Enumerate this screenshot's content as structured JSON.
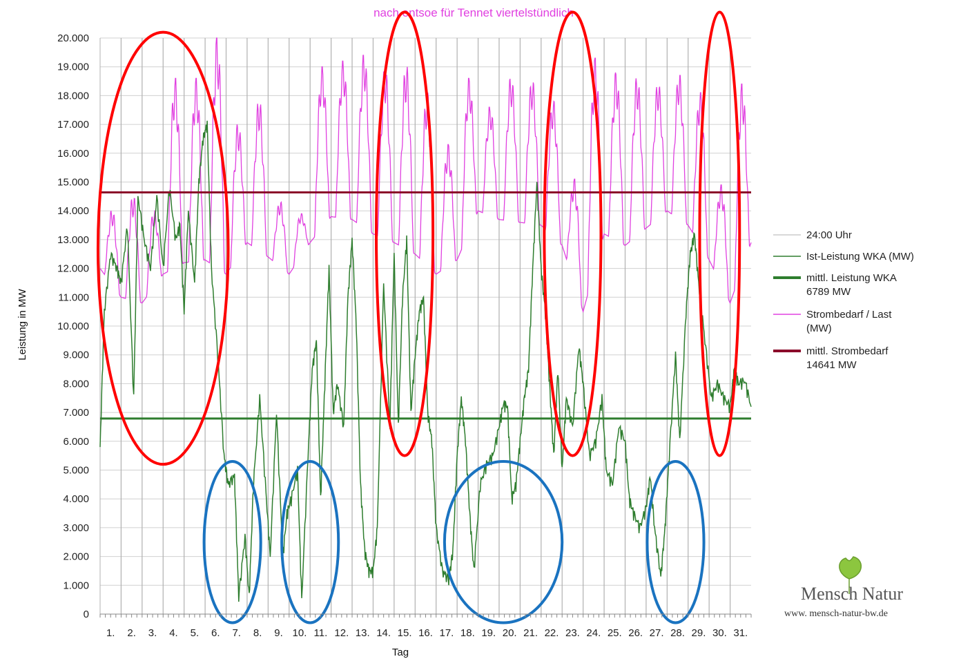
{
  "chart_data": {
    "type": "line",
    "title": "nach entsoe für Tennet viertelstündlich",
    "xlabel": "Tag",
    "ylabel": "Leistung in MW",
    "ylim": [
      0,
      20000
    ],
    "y_ticks": [
      "0",
      "1.000",
      "2.000",
      "3.000",
      "4.000",
      "5.000",
      "6.000",
      "7.000",
      "8.000",
      "9.000",
      "10.000",
      "11.000",
      "12.000",
      "13.000",
      "14.000",
      "15.000",
      "16.000",
      "17.000",
      "18.000",
      "19.000",
      "20.000"
    ],
    "x_ticks": [
      "1.",
      "2.",
      "3.",
      "4.",
      "5.",
      "6.",
      "7.",
      "8.",
      "9.",
      "10.",
      "11.",
      "12.",
      "13.",
      "14.",
      "15.",
      "16.",
      "17.",
      "18.",
      "19.",
      "20.",
      "21.",
      "22.",
      "23.",
      "24.",
      "25.",
      "26.",
      "27.",
      "28.",
      "29.",
      "30.",
      "31."
    ],
    "grid": true,
    "legend_position": "right",
    "series": [
      {
        "name": "24:00 Uhr",
        "color": "#b0b0b0",
        "kind": "day-separators"
      },
      {
        "name": "Ist-Leistung WKA (MW)",
        "color": "#2e7d2e",
        "kind": "line",
        "x": [
          0,
          0.2,
          0.5,
          0.8,
          1,
          1.3,
          1.6,
          1.8,
          2.1,
          2.4,
          2.7,
          3,
          3.3,
          3.6,
          3.8,
          4,
          4.2,
          4.5,
          4.7,
          4.9,
          5.1,
          5.3,
          5.6,
          5.9,
          6.1,
          6.4,
          6.6,
          6.9,
          7.1,
          7.3,
          7.6,
          7.9,
          8.1,
          8.4,
          8.7,
          8.9,
          9.1,
          9.4,
          9.6,
          9.9,
          10.1,
          10.3,
          10.5,
          10.7,
          10.9,
          11.1,
          11.3,
          11.6,
          11.8,
          12,
          12.2,
          12.4,
          12.6,
          12.8,
          13,
          13.2,
          13.5,
          13.8,
          14,
          14.2,
          14.4,
          14.6,
          14.8,
          15,
          15.2,
          15.4,
          15.6,
          15.8,
          16,
          16.3,
          16.6,
          16.8,
          17,
          17.2,
          17.4,
          17.6,
          17.8,
          18.1,
          18.4,
          18.7,
          19,
          19.2,
          19.4,
          19.6,
          19.8,
          20,
          20.2,
          20.4,
          20.6,
          20.8,
          21,
          21.2,
          21.4,
          21.6,
          21.8,
          22,
          22.2,
          22.5,
          22.8,
          23,
          23.3,
          23.6,
          23.9,
          24.1,
          24.4,
          24.7,
          25,
          25.2,
          25.4,
          25.7,
          26,
          26.2,
          26.4,
          26.7,
          26.9,
          27.1,
          27.4,
          27.6,
          27.9,
          28.1,
          28.3,
          28.5,
          28.8,
          29.1,
          29.4,
          29.7,
          30,
          30.2,
          30.4,
          30.7,
          31
        ],
        "values": [
          5800,
          10500,
          12500,
          12000,
          11500,
          13500,
          7500,
          14500,
          13000,
          12000,
          14500,
          12000,
          14800,
          13000,
          13500,
          10500,
          14000,
          11500,
          15000,
          16500,
          17000,
          12000,
          9000,
          5500,
          4500,
          4800,
          600,
          2700,
          600,
          4500,
          7500,
          4200,
          2000,
          7000,
          2000,
          3500,
          4000,
          5000,
          500,
          5500,
          8500,
          9500,
          4000,
          8000,
          12000,
          7000,
          8000,
          6500,
          11000,
          13000,
          10000,
          4500,
          2200,
          1500,
          1500,
          3000,
          11500,
          6500,
          12500,
          6500,
          11000,
          13000,
          7000,
          9000,
          10500,
          11000,
          7000,
          6000,
          3000,
          1500,
          1200,
          2200,
          5500,
          7500,
          6000,
          3500,
          1500,
          4500,
          5200,
          5500,
          6500,
          7300,
          7200,
          4000,
          4500,
          6000,
          7500,
          8500,
          12000,
          15000,
          12000,
          10500,
          8000,
          5500,
          8500,
          5000,
          7500,
          6500,
          9300,
          8000,
          5500,
          6000,
          7500,
          5000,
          4500,
          6500,
          6000,
          4000,
          3500,
          3000,
          3700,
          4800,
          3000,
          1300,
          3000,
          5500,
          9000,
          6000,
          10500,
          12500,
          13200,
          11500,
          9500,
          7500,
          8000,
          7500,
          7200,
          8500,
          8000,
          8100,
          7200
        ]
      },
      {
        "name": "mittl. Leistung WKA",
        "label2": "6789 MW",
        "color": "#2e7d2e",
        "kind": "hline",
        "value": 6789
      },
      {
        "name": "Strombedarf / Last",
        "label2": "(MW)",
        "color": "#e040e0",
        "kind": "daily-cycle",
        "daily_min": [
          12000,
          11000,
          10800,
          11800,
          12200,
          12300,
          11800,
          12900,
          12400,
          11800,
          12900,
          13800,
          13700,
          13200,
          12900,
          12500,
          11800,
          12300,
          14000,
          13700,
          13600,
          13500,
          12800,
          10500,
          13200,
          12800,
          13400,
          14000,
          13500,
          12300,
          10800,
          12900
        ],
        "daily_max": [
          14000,
          14500,
          14000,
          18600,
          18600,
          20000,
          17000,
          17800,
          14300,
          13900,
          19000,
          19200,
          19400,
          18900,
          19000,
          18100,
          16300,
          18600,
          17600,
          18600,
          18500,
          17800,
          15100,
          19300,
          18800,
          18600,
          18400,
          18700,
          18100,
          14900,
          18400,
          17300
        ]
      },
      {
        "name": "mittl. Strombedarf",
        "label2": "14641 MW",
        "color": "#8b0a2a",
        "kind": "hline",
        "value": 14641
      }
    ],
    "annotations": [
      {
        "shape": "ellipse",
        "color": "#ff0000",
        "cx_day": 3.0,
        "cy_val": 12700,
        "rx_days": 3.1,
        "ry_val": 7500
      },
      {
        "shape": "ellipse",
        "color": "#ff0000",
        "cx_day": 14.5,
        "cy_val": 13200,
        "rx_days": 1.35,
        "ry_val": 7700
      },
      {
        "shape": "ellipse",
        "color": "#ff0000",
        "cx_day": 22.5,
        "cy_val": 13200,
        "rx_days": 1.35,
        "ry_val": 7700
      },
      {
        "shape": "ellipse",
        "color": "#ff0000",
        "cx_day": 29.5,
        "cy_val": 13200,
        "rx_days": 0.95,
        "ry_val": 7700
      },
      {
        "shape": "ellipse",
        "color": "#1a73c0",
        "cx_day": 6.3,
        "cy_val": 2500,
        "rx_days": 1.35,
        "ry_val": 2800
      },
      {
        "shape": "ellipse",
        "color": "#1a73c0",
        "cx_day": 10.0,
        "cy_val": 2500,
        "rx_days": 1.35,
        "ry_val": 2800
      },
      {
        "shape": "ellipse",
        "color": "#1a73c0",
        "cx_day": 19.2,
        "cy_val": 2500,
        "rx_days": 2.8,
        "ry_val": 2800
      },
      {
        "shape": "ellipse",
        "color": "#1a73c0",
        "cx_day": 27.4,
        "cy_val": 2500,
        "rx_days": 1.35,
        "ry_val": 2800
      }
    ]
  },
  "logo": {
    "name": "Mensch Natur",
    "url_text": "www. mensch-natur-bw.de"
  }
}
